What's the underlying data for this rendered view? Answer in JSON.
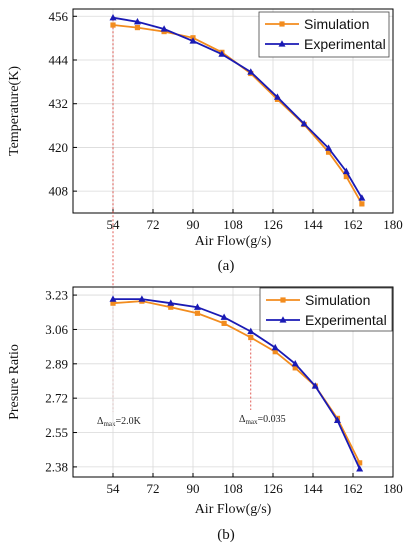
{
  "colors": {
    "simulation": "#f28c1e",
    "experimental": "#1a1ab4",
    "annotation": "#d9332b"
  },
  "chart_data": [
    {
      "type": "line",
      "panel_label": "(a)",
      "xlabel": "Air Flow(g/s)",
      "ylabel": "Temperature(K)",
      "xlim": [
        36,
        180
      ],
      "ylim": [
        402,
        458
      ],
      "xticks": [
        54,
        72,
        90,
        108,
        126,
        144,
        162,
        180
      ],
      "yticks": [
        408,
        420,
        432,
        444,
        456
      ],
      "grid": true,
      "legend_placement": "top-right",
      "series": [
        {
          "name": "Simulation",
          "marker": "square",
          "x": [
            54,
            65,
            77,
            90,
            103,
            116,
            128,
            140,
            151,
            159,
            166
          ],
          "y": [
            453.6,
            452.9,
            451.8,
            450.1,
            446.1,
            440.3,
            433.2,
            426.3,
            418.7,
            412.0,
            404.5
          ]
        },
        {
          "name": "Experimental",
          "marker": "triangle",
          "x": [
            54,
            65,
            77,
            90,
            103,
            116,
            128,
            140,
            151,
            159,
            166
          ],
          "y": [
            455.6,
            454.5,
            452.5,
            449.2,
            445.6,
            440.7,
            433.8,
            426.5,
            419.8,
            413.4,
            406.1
          ]
        }
      ],
      "annotation": {
        "base": "Δ",
        "sub": "max",
        "value": "=2.0K",
        "x": 54
      }
    },
    {
      "type": "line",
      "panel_label": "(b)",
      "xlabel": "Air Flow(g/s)",
      "ylabel": "Presure Ratio",
      "xlim": [
        36,
        180
      ],
      "ylim": [
        2.33,
        3.27
      ],
      "xticks": [
        54,
        72,
        90,
        108,
        126,
        144,
        162,
        180
      ],
      "yticks": [
        2.38,
        2.55,
        2.72,
        2.89,
        3.06,
        3.23
      ],
      "grid": true,
      "legend_placement": "top-right",
      "series": [
        {
          "name": "Simulation",
          "marker": "square",
          "x": [
            54,
            67,
            80,
            92,
            104,
            116,
            127,
            136,
            145,
            155,
            165
          ],
          "y": [
            3.19,
            3.2,
            3.17,
            3.14,
            3.09,
            3.02,
            2.95,
            2.87,
            2.78,
            2.62,
            2.4
          ]
        },
        {
          "name": "Experimental",
          "marker": "triangle",
          "x": [
            54,
            67,
            80,
            92,
            104,
            116,
            127,
            136,
            145,
            155,
            165
          ],
          "y": [
            3.21,
            3.21,
            3.19,
            3.17,
            3.12,
            3.05,
            2.97,
            2.89,
            2.78,
            2.61,
            2.37
          ]
        }
      ],
      "annotation": {
        "base": "Δ",
        "sub": "max",
        "value": "=0.035",
        "x": 116
      }
    }
  ]
}
